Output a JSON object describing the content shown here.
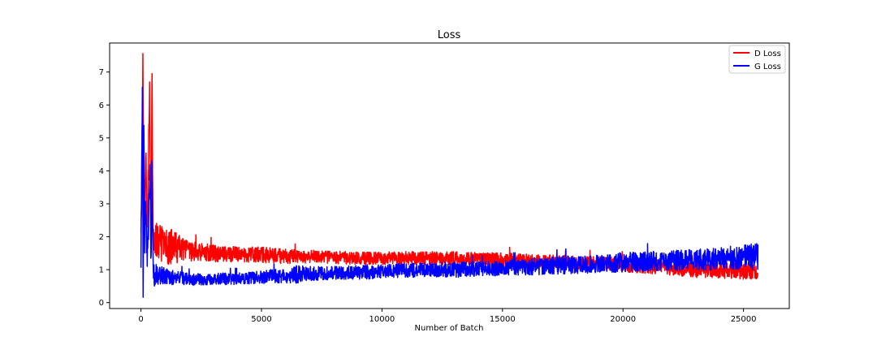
{
  "chart_data": {
    "type": "line",
    "title": "Loss",
    "xlabel": "Number of Batch",
    "ylabel": "",
    "xlim": [
      -1300,
      26900
    ],
    "ylim": [
      -0.18,
      7.88
    ],
    "xticks": [
      0,
      5000,
      10000,
      15000,
      20000,
      25000
    ],
    "xtick_labels": [
      "0",
      "5000",
      "10000",
      "15000",
      "20000",
      "25000"
    ],
    "yticks": [
      0,
      1,
      2,
      3,
      4,
      5,
      6,
      7
    ],
    "ytick_labels": [
      "0",
      "1",
      "2",
      "3",
      "4",
      "5",
      "6",
      "7"
    ],
    "grid": false,
    "legend": {
      "position": "top-right",
      "entries": [
        "D Loss",
        "G Loss"
      ]
    },
    "series": [
      {
        "name": "D Loss",
        "color": "#ff0000",
        "x": [
          0,
          50,
          80,
          120,
          160,
          200,
          260,
          300,
          360,
          420,
          460,
          500,
          600,
          800,
          1000,
          1300,
          1500,
          2000,
          3000,
          4000,
          5000,
          6000,
          7000,
          8000,
          9000,
          10000,
          11000,
          12000,
          13000,
          14000,
          15000,
          16000,
          17000,
          18000,
          19000,
          20000,
          21000,
          22000,
          23000,
          24000,
          25000,
          25600
        ],
        "values": [
          2.3,
          5.0,
          7.5,
          3.2,
          2.5,
          4.6,
          2.0,
          3.6,
          6.7,
          1.3,
          7.0,
          1.8,
          1.9,
          1.8,
          1.7,
          1.7,
          1.65,
          1.55,
          1.5,
          1.45,
          1.45,
          1.4,
          1.4,
          1.38,
          1.35,
          1.35,
          1.35,
          1.35,
          1.35,
          1.32,
          1.3,
          1.28,
          1.25,
          1.22,
          1.2,
          1.15,
          1.1,
          1.05,
          1.0,
          0.98,
          0.95,
          0.95
        ],
        "noise": [
          0.4,
          0.5,
          0.5,
          0.5,
          0.5,
          0.5,
          0.5,
          0.5,
          0.5,
          0.5,
          0.5,
          0.55,
          0.55,
          0.55,
          0.55,
          0.55,
          0.45,
          0.3,
          0.26,
          0.24,
          0.24,
          0.22,
          0.2,
          0.2,
          0.2,
          0.2,
          0.2,
          0.2,
          0.2,
          0.2,
          0.22,
          0.2,
          0.2,
          0.2,
          0.22,
          0.22,
          0.22,
          0.22,
          0.24,
          0.24,
          0.24,
          0.24
        ]
      },
      {
        "name": "G Loss",
        "color": "#0000ff",
        "x": [
          0,
          40,
          60,
          90,
          120,
          160,
          200,
          260,
          320,
          380,
          420,
          460,
          520,
          600,
          800,
          1000,
          1500,
          2000,
          3000,
          4000,
          5000,
          6000,
          6500,
          7000,
          8000,
          9000,
          10000,
          11000,
          12000,
          13000,
          14000,
          15000,
          16000,
          17000,
          18000,
          19000,
          20000,
          21000,
          22000,
          23000,
          24000,
          25000,
          25600
        ],
        "values": [
          1.2,
          4.8,
          6.7,
          0.2,
          5.1,
          2.0,
          3.0,
          1.2,
          2.6,
          4.0,
          1.0,
          3.4,
          0.8,
          0.9,
          0.85,
          0.8,
          0.75,
          0.7,
          0.72,
          0.72,
          0.78,
          0.82,
          0.85,
          0.88,
          0.9,
          0.92,
          0.95,
          0.98,
          1.0,
          1.0,
          1.02,
          1.05,
          1.08,
          1.12,
          1.15,
          1.18,
          1.22,
          1.25,
          1.28,
          1.3,
          1.33,
          1.38,
          1.4
        ],
        "noise": [
          0.4,
          0.5,
          0.5,
          0.5,
          0.5,
          0.5,
          0.5,
          0.5,
          0.5,
          0.5,
          0.5,
          0.5,
          0.35,
          0.35,
          0.3,
          0.26,
          0.22,
          0.18,
          0.18,
          0.18,
          0.2,
          0.22,
          0.28,
          0.22,
          0.2,
          0.22,
          0.22,
          0.22,
          0.22,
          0.24,
          0.22,
          0.24,
          0.26,
          0.26,
          0.28,
          0.28,
          0.3,
          0.3,
          0.3,
          0.32,
          0.34,
          0.38,
          0.4
        ]
      }
    ]
  }
}
